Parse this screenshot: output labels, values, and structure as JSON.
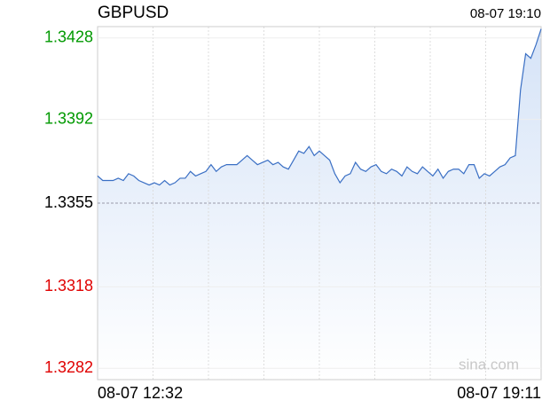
{
  "chart_data": {
    "type": "line",
    "title": "GBPUSD",
    "timestamp": "08-07 19:10",
    "x_start_label": "08-07 12:32",
    "x_end_label": "08-07 19:11",
    "watermark": "sina.com",
    "ylim": [
      1.3277,
      1.3433
    ],
    "yticks": [
      1.3428,
      1.3392,
      1.3355,
      1.3318,
      1.3282
    ],
    "baseline": 1.3355,
    "up_color": "#009900",
    "down_color": "#e00000",
    "flat_color": "#000000",
    "color": "#3a6fc4",
    "fill_color": "#d5e3f7",
    "grid": true,
    "vertical_grid_count": 8,
    "values": [
      1.3367,
      1.3365,
      1.3365,
      1.3365,
      1.3366,
      1.3365,
      1.3368,
      1.3367,
      1.3365,
      1.3364,
      1.3363,
      1.3364,
      1.3363,
      1.3365,
      1.3363,
      1.3364,
      1.3366,
      1.3366,
      1.3369,
      1.3367,
      1.3368,
      1.3369,
      1.3372,
      1.3369,
      1.3371,
      1.3372,
      1.3372,
      1.3372,
      1.3374,
      1.3376,
      1.3374,
      1.3372,
      1.3373,
      1.3374,
      1.3372,
      1.3373,
      1.3371,
      1.337,
      1.3374,
      1.3378,
      1.3377,
      1.338,
      1.3376,
      1.3378,
      1.3376,
      1.3374,
      1.3368,
      1.3364,
      1.3367,
      1.3368,
      1.3373,
      1.337,
      1.3369,
      1.3371,
      1.3372,
      1.3369,
      1.3368,
      1.337,
      1.3369,
      1.3367,
      1.3371,
      1.3369,
      1.3368,
      1.3371,
      1.3369,
      1.3367,
      1.337,
      1.3366,
      1.3369,
      1.337,
      1.337,
      1.3368,
      1.3372,
      1.3372,
      1.3366,
      1.3368,
      1.3367,
      1.3369,
      1.3371,
      1.3372,
      1.3375,
      1.3376,
      1.3405,
      1.3421,
      1.3419,
      1.3425,
      1.3432
    ]
  }
}
